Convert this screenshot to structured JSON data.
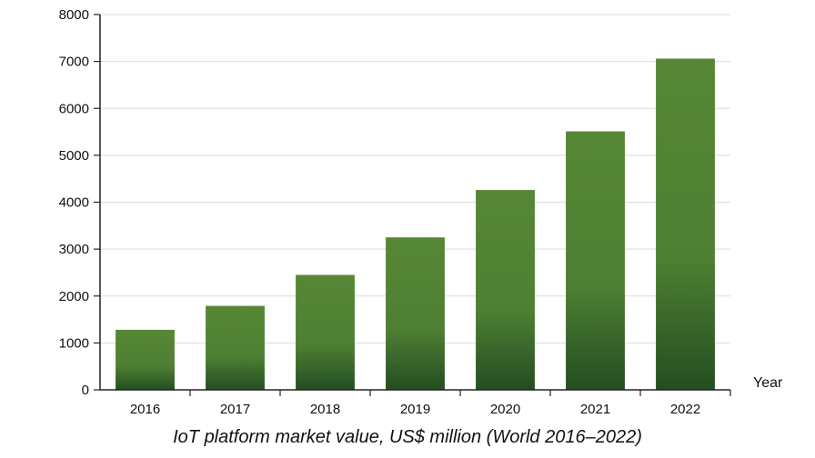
{
  "chart_data": {
    "type": "bar",
    "title": "IoT platform market value, US$ million (World 2016–2022)",
    "xlabel": "Year",
    "ylabel": "",
    "categories": [
      "2016",
      "2017",
      "2018",
      "2019",
      "2020",
      "2021",
      "2022"
    ],
    "values": [
      1280,
      1790,
      2450,
      3250,
      4260,
      5510,
      7060
    ],
    "ylim": [
      0,
      8000
    ],
    "yticks": [
      0,
      1000,
      2000,
      3000,
      4000,
      5000,
      6000,
      7000,
      8000
    ],
    "grid": true,
    "legend": "none",
    "colors": {
      "bar_top": "#568735",
      "bar_mid": "#4f7f33",
      "bar_bottom": "#244e22",
      "grid": "#d9d9d9",
      "axis": "#222222"
    }
  }
}
